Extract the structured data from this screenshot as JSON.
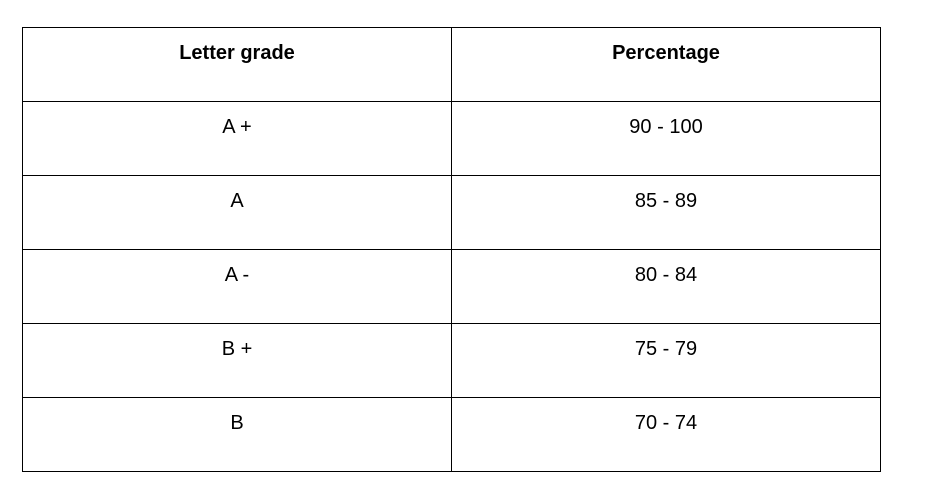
{
  "table": {
    "header": [
      "Letter grade",
      "Percentage"
    ],
    "rows": [
      [
        "A +",
        "90 - 100"
      ],
      [
        "A",
        "85 - 89"
      ],
      [
        "A -",
        "80 - 84"
      ],
      [
        "B +",
        "75 - 79"
      ],
      [
        "B",
        "70 - 74"
      ]
    ]
  }
}
